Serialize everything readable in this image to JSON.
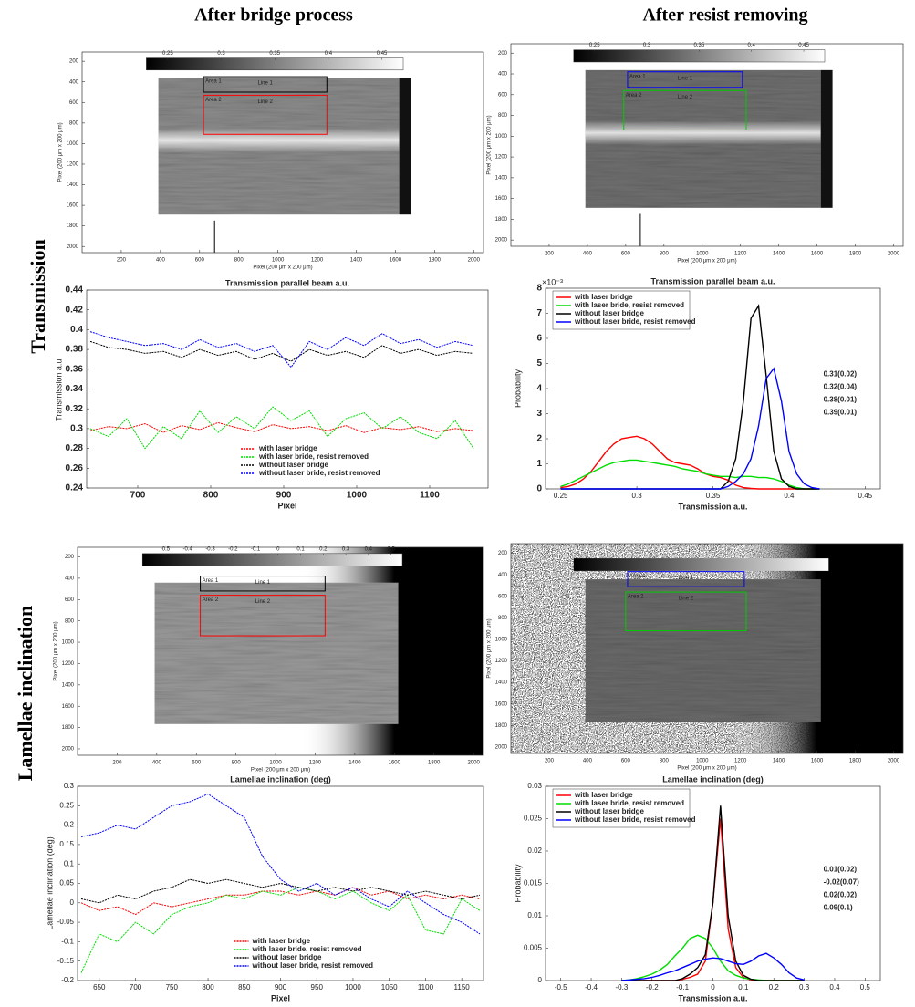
{
  "columns": [
    "After bridge process",
    "After resist removing"
  ],
  "rows": [
    "Transmission",
    "Lamellae inclination"
  ],
  "chart_data": [
    {
      "type": "image",
      "xlabel": "Pixel (200 μm x 200 μm)",
      "ylabel": "Pixel (200 μm x 200 μm)",
      "xlim": [
        0,
        2050
      ],
      "ylim": [
        2060,
        110
      ],
      "xticks": [
        200,
        400,
        600,
        800,
        1000,
        1200,
        1400,
        1600,
        1800,
        2000
      ],
      "yticks": [
        200,
        400,
        600,
        800,
        1000,
        1200,
        1400,
        1600,
        1800,
        2000
      ],
      "colorbar": {
        "lim": [
          0.23,
          0.47
        ],
        "ticks": [
          0.25,
          0.3,
          0.35,
          0.4,
          0.45
        ]
      },
      "regions": [
        {
          "label": "Area 1",
          "line": "Line 1",
          "color": "#000000",
          "x": [
            620,
            1250
          ],
          "y": [
            350,
            500
          ]
        },
        {
          "label": "Area 2",
          "line": "Line 2",
          "color": "#ff0000",
          "x": [
            620,
            1250
          ],
          "y": [
            530,
            910
          ]
        }
      ]
    },
    {
      "type": "image",
      "xlabel": "Pixel (200 μm x 200 μm)",
      "ylabel": "Pixel (200 μm x 200 μm)",
      "xlim": [
        0,
        2050
      ],
      "ylim": [
        2060,
        110
      ],
      "xticks": [
        200,
        400,
        600,
        800,
        1000,
        1200,
        1400,
        1600,
        1800,
        2000
      ],
      "yticks": [
        200,
        400,
        600,
        800,
        1000,
        1200,
        1400,
        1600,
        1800,
        2000
      ],
      "colorbar": {
        "lim": [
          0.23,
          0.47
        ],
        "ticks": [
          0.25,
          0.3,
          0.35,
          0.4,
          0.45
        ]
      },
      "regions": [
        {
          "label": "Area 1",
          "line": "Line 1",
          "color": "#0000ff",
          "x": [
            610,
            1210
          ],
          "y": [
            380,
            530
          ]
        },
        {
          "label": "Area 2",
          "line": "Line 2",
          "color": "#00cc00",
          "x": [
            590,
            1230
          ],
          "y": [
            560,
            940
          ]
        }
      ]
    },
    {
      "type": "line",
      "title": "Transmission parallel beam a.u.",
      "xlabel": "Pixel",
      "ylabel": "Transmission a.u.",
      "xlim": [
        630,
        1180
      ],
      "ylim": [
        0.24,
        0.44
      ],
      "xticks": [
        700,
        800,
        900,
        1000,
        1100
      ],
      "yticks": [
        0.24,
        0.26,
        0.28,
        0.3,
        0.32,
        0.34,
        0.36,
        0.38,
        0.4,
        0.42,
        0.44
      ],
      "legend": "lower center",
      "x": [
        635,
        660,
        685,
        710,
        735,
        760,
        785,
        810,
        835,
        860,
        885,
        910,
        935,
        960,
        985,
        1010,
        1035,
        1060,
        1085,
        1110,
        1135,
        1160
      ],
      "series": [
        {
          "name": "with laser bridge",
          "color": "#ff0000",
          "values": [
            0.298,
            0.302,
            0.3,
            0.305,
            0.296,
            0.303,
            0.299,
            0.306,
            0.301,
            0.297,
            0.304,
            0.3,
            0.302,
            0.298,
            0.303,
            0.296,
            0.301,
            0.299,
            0.302,
            0.297,
            0.3,
            0.298
          ]
        },
        {
          "name": "with laser bride, resist removed",
          "color": "#00dd00",
          "values": [
            0.3,
            0.292,
            0.31,
            0.28,
            0.302,
            0.29,
            0.318,
            0.296,
            0.312,
            0.3,
            0.322,
            0.308,
            0.318,
            0.292,
            0.31,
            0.316,
            0.3,
            0.312,
            0.296,
            0.29,
            0.308,
            0.28
          ]
        },
        {
          "name": "without laser bridge",
          "color": "#000000",
          "values": [
            0.388,
            0.382,
            0.38,
            0.376,
            0.378,
            0.372,
            0.38,
            0.374,
            0.378,
            0.37,
            0.376,
            0.368,
            0.38,
            0.374,
            0.378,
            0.372,
            0.384,
            0.376,
            0.38,
            0.374,
            0.378,
            0.376
          ]
        },
        {
          "name": "without laser bride, resist removed",
          "color": "#0000ff",
          "values": [
            0.398,
            0.392,
            0.388,
            0.384,
            0.386,
            0.38,
            0.39,
            0.382,
            0.386,
            0.378,
            0.384,
            0.362,
            0.388,
            0.38,
            0.392,
            0.384,
            0.396,
            0.386,
            0.39,
            0.382,
            0.388,
            0.384
          ]
        }
      ]
    },
    {
      "type": "histogram",
      "title": "Transmission parallel beam a.u.",
      "xlabel": "Transmission a.u.",
      "ylabel": "Probability",
      "y_multiplier": "×10⁻³",
      "xlim": [
        0.24,
        0.46
      ],
      "ylim": [
        0,
        8
      ],
      "xticks": [
        0.25,
        0.3,
        0.35,
        0.4,
        0.45
      ],
      "yticks": [
        0,
        1,
        2,
        3,
        4,
        5,
        6,
        7,
        8
      ],
      "legend": "upper left",
      "x": [
        0.25,
        0.255,
        0.26,
        0.265,
        0.27,
        0.275,
        0.28,
        0.285,
        0.29,
        0.295,
        0.3,
        0.305,
        0.31,
        0.315,
        0.32,
        0.325,
        0.33,
        0.335,
        0.34,
        0.345,
        0.35,
        0.355,
        0.36,
        0.365,
        0.37,
        0.375,
        0.38,
        0.385,
        0.39,
        0.395,
        0.4,
        0.405,
        0.41,
        0.415,
        0.42
      ],
      "series": [
        {
          "name": "with laser bridge",
          "color": "#ff0000",
          "values": [
            0.05,
            0.1,
            0.2,
            0.4,
            0.7,
            1.1,
            1.5,
            1.8,
            2.0,
            2.05,
            2.1,
            2.0,
            1.8,
            1.5,
            1.2,
            1.05,
            1.0,
            0.95,
            0.8,
            0.6,
            0.5,
            0.45,
            0.35,
            0.15,
            0.05,
            0.02,
            0,
            0,
            0,
            0,
            0,
            0,
            0,
            0,
            0
          ]
        },
        {
          "name": "with laser bride, resist removed",
          "color": "#00dd00",
          "values": [
            0.1,
            0.2,
            0.35,
            0.5,
            0.65,
            0.8,
            0.95,
            1.05,
            1.1,
            1.15,
            1.15,
            1.1,
            1.05,
            1.0,
            0.95,
            0.9,
            0.8,
            0.75,
            0.7,
            0.6,
            0.55,
            0.5,
            0.5,
            0.45,
            0.5,
            0.5,
            0.45,
            0.45,
            0.4,
            0.3,
            0.15,
            0.05,
            0,
            0,
            0
          ]
        },
        {
          "name": "without laser bridge",
          "color": "#000000",
          "values": [
            0,
            0,
            0,
            0,
            0,
            0,
            0,
            0,
            0,
            0,
            0,
            0,
            0,
            0,
            0,
            0,
            0,
            0,
            0,
            0,
            0,
            0,
            0.3,
            1.2,
            3.5,
            6.8,
            7.3,
            4.5,
            1.5,
            0.4,
            0.1,
            0,
            0,
            0,
            0
          ]
        },
        {
          "name": "without laser bride, resist removed",
          "color": "#0000ff",
          "values": [
            0,
            0,
            0,
            0,
            0,
            0,
            0,
            0,
            0,
            0,
            0,
            0,
            0,
            0,
            0,
            0,
            0,
            0,
            0,
            0,
            0,
            0,
            0.1,
            0.3,
            0.6,
            1.2,
            2.5,
            4.4,
            4.8,
            3.5,
            1.5,
            0.6,
            0.2,
            0.05,
            0
          ]
        }
      ],
      "annotations": [
        {
          "text": "0.31(0.02)",
          "color": "#ff0000"
        },
        {
          "text": "0.32(0.04)",
          "color": "#00dd00"
        },
        {
          "text": "0.38(0.01)",
          "color": "#000000"
        },
        {
          "text": "0.39(0.01)",
          "color": "#0000ff"
        }
      ]
    },
    {
      "type": "image",
      "xlabel": "Pixel (200 μm x 200 μm)",
      "ylabel": "Pixel (200 μm x 200 μm)",
      "xlim": [
        0,
        2050
      ],
      "ylim": [
        2060,
        110
      ],
      "xticks": [
        200,
        400,
        600,
        800,
        1000,
        1200,
        1400,
        1600,
        1800,
        2000
      ],
      "yticks": [
        200,
        400,
        600,
        800,
        1000,
        1200,
        1400,
        1600,
        1800,
        2000
      ],
      "colorbar": {
        "lim": [
          -0.6,
          0.55
        ],
        "ticks": [
          -0.5,
          -0.4,
          -0.3,
          -0.2,
          -0.1,
          0,
          0.1,
          0.2,
          0.3,
          0.4,
          0.5
        ]
      },
      "regions": [
        {
          "label": "Area 1",
          "line": "Line 1",
          "color": "#000000",
          "x": [
            620,
            1250
          ],
          "y": [
            380,
            520
          ]
        },
        {
          "label": "Area 2",
          "line": "Line 2",
          "color": "#ff0000",
          "x": [
            620,
            1250
          ],
          "y": [
            560,
            940
          ]
        }
      ]
    },
    {
      "type": "image",
      "xlabel": "Pixel (200 μm x 200 μm)",
      "ylabel": "Pixel (200 μm x 200 μm)",
      "xlim": [
        0,
        2050
      ],
      "ylim": [
        2060,
        110
      ],
      "xticks": [
        200,
        400,
        600,
        800,
        1000,
        1200,
        1400,
        1600,
        1800,
        2000
      ],
      "yticks": [
        200,
        400,
        600,
        800,
        1000,
        1200,
        1400,
        1600,
        1800,
        2000
      ],
      "regions": [
        {
          "label": "Area 1",
          "line": "Line 1",
          "color": "#0000ff",
          "x": [
            610,
            1220
          ],
          "y": [
            370,
            510
          ]
        },
        {
          "label": "Area 2",
          "line": "Line 2",
          "color": "#00cc00",
          "x": [
            600,
            1230
          ],
          "y": [
            560,
            920
          ]
        }
      ]
    },
    {
      "type": "line",
      "title": "Lamellae inclination (deg)",
      "xlabel": "Pixel",
      "ylabel": "Lamellae inclination (deg)",
      "xlim": [
        620,
        1180
      ],
      "ylim": [
        -0.2,
        0.3
      ],
      "xticks": [
        650,
        700,
        750,
        800,
        850,
        900,
        950,
        1000,
        1050,
        1100,
        1150
      ],
      "yticks": [
        -0.2,
        -0.15,
        -0.1,
        -0.05,
        0,
        0.05,
        0.1,
        0.15,
        0.2,
        0.25,
        0.3
      ],
      "legend": "lower center",
      "x": [
        625,
        650,
        675,
        700,
        725,
        750,
        775,
        800,
        825,
        850,
        875,
        900,
        925,
        950,
        975,
        1000,
        1025,
        1050,
        1075,
        1100,
        1125,
        1150,
        1175
      ],
      "series": [
        {
          "name": "with laser bridge",
          "color": "#ff0000",
          "values": [
            0,
            -0.02,
            -0.01,
            -0.03,
            0,
            -0.01,
            0,
            0.01,
            0.02,
            0.02,
            0.03,
            0.03,
            0.02,
            0.03,
            0.02,
            0.04,
            0.02,
            0.03,
            0.01,
            0.02,
            0.01,
            0.02,
            0.01
          ]
        },
        {
          "name": "with laser bride, resist removed",
          "color": "#00dd00",
          "values": [
            -0.18,
            -0.08,
            -0.1,
            -0.05,
            -0.08,
            -0.03,
            -0.01,
            0,
            0.02,
            0.01,
            0.03,
            0.02,
            0.04,
            0.03,
            0.01,
            0.03,
            0,
            -0.02,
            0.02,
            -0.07,
            -0.08,
            0.01,
            -0.02
          ]
        },
        {
          "name": "without laser bridge",
          "color": "#000000",
          "values": [
            0.01,
            0,
            0.02,
            0.01,
            0.03,
            0.04,
            0.06,
            0.05,
            0.06,
            0.05,
            0.04,
            0.05,
            0.04,
            0.03,
            0.04,
            0.03,
            0.04,
            0.03,
            0.02,
            0.03,
            0.02,
            0.01,
            0.02
          ]
        },
        {
          "name": "without laser bride, resist removed",
          "color": "#0000ff",
          "values": [
            0.17,
            0.18,
            0.2,
            0.19,
            0.22,
            0.25,
            0.26,
            0.28,
            0.25,
            0.22,
            0.12,
            0.06,
            0.03,
            0.05,
            0.02,
            0.04,
            0.01,
            -0.01,
            0.03,
            0,
            -0.03,
            -0.05,
            -0.08
          ]
        }
      ]
    },
    {
      "type": "histogram",
      "title": "Lamellae inclination (deg)",
      "xlabel": "Transmission a.u.",
      "ylabel": "Probability",
      "xlim": [
        -0.55,
        0.55
      ],
      "ylim": [
        0,
        0.03
      ],
      "xticks": [
        -0.5,
        -0.4,
        -0.3,
        -0.2,
        -0.1,
        0,
        0.1,
        0.2,
        0.3,
        0.4,
        0.5
      ],
      "yticks": [
        0,
        0.005,
        0.01,
        0.015,
        0.02,
        0.025,
        0.03
      ],
      "legend": "upper left",
      "x": [
        -0.3,
        -0.275,
        -0.25,
        -0.225,
        -0.2,
        -0.175,
        -0.15,
        -0.125,
        -0.1,
        -0.075,
        -0.05,
        -0.025,
        0,
        0.025,
        0.05,
        0.075,
        0.1,
        0.125,
        0.15,
        0.175,
        0.2,
        0.225,
        0.25,
        0.275,
        0.3
      ],
      "series": [
        {
          "name": "with laser bridge",
          "color": "#ff0000",
          "values": [
            0,
            0,
            0,
            0,
            0,
            0,
            0,
            0,
            0.0002,
            0.0005,
            0.001,
            0.003,
            0.012,
            0.025,
            0.008,
            0.002,
            0.0005,
            0.0001,
            0,
            0,
            0,
            0,
            0,
            0,
            0
          ]
        },
        {
          "name": "with laser bride, resist removed",
          "color": "#00dd00",
          "values": [
            0,
            0.0001,
            0.0003,
            0.0006,
            0.001,
            0.0016,
            0.0025,
            0.0038,
            0.005,
            0.0065,
            0.007,
            0.0065,
            0.005,
            0.003,
            0.0015,
            0.0008,
            0.0004,
            0.0002,
            0.0001,
            0,
            0,
            0,
            0,
            0,
            0
          ]
        },
        {
          "name": "without laser bridge",
          "color": "#000000",
          "values": [
            0,
            0,
            0,
            0,
            0,
            0,
            0,
            0,
            0.0003,
            0.001,
            0.002,
            0.004,
            0.012,
            0.027,
            0.01,
            0.003,
            0.0008,
            0.0002,
            0,
            0,
            0,
            0,
            0,
            0,
            0
          ]
        },
        {
          "name": "without laser bride, resist removed",
          "color": "#0000ff",
          "values": [
            0,
            0.0001,
            0.0002,
            0.0003,
            0.0005,
            0.0008,
            0.0012,
            0.0015,
            0.002,
            0.0025,
            0.003,
            0.0033,
            0.0035,
            0.0034,
            0.003,
            0.0026,
            0.0025,
            0.003,
            0.0038,
            0.0042,
            0.0035,
            0.0025,
            0.0012,
            0.0004,
            0.0001
          ]
        }
      ],
      "annotations": [
        {
          "text": "0.01(0.02)",
          "color": "#ff0000"
        },
        {
          "text": "-0.02(0.07)",
          "color": "#00dd00"
        },
        {
          "text": "0.02(0.02)",
          "color": "#000000"
        },
        {
          "text": "0.09(0.1)",
          "color": "#0000ff"
        }
      ]
    }
  ]
}
